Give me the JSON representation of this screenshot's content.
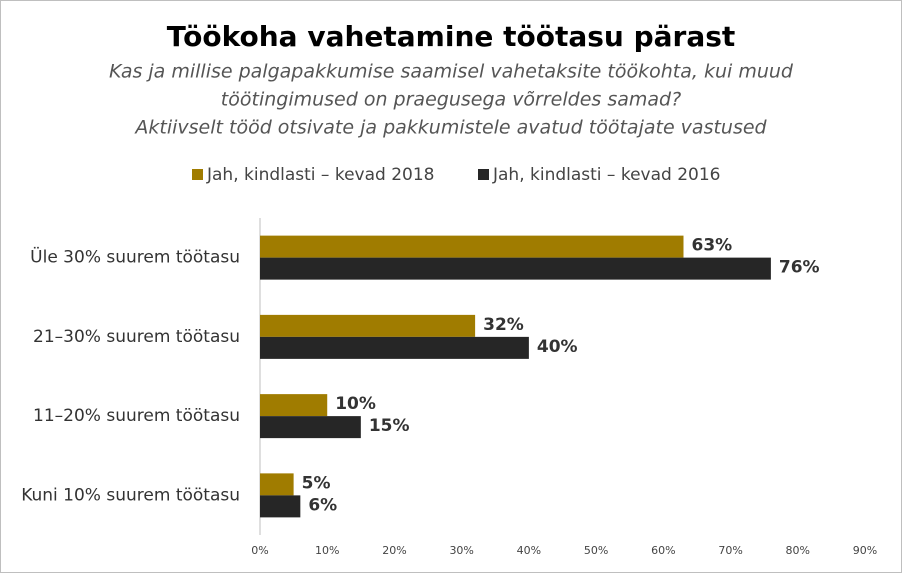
{
  "chart_data": {
    "type": "hbar",
    "title": "Töökoha vahetamine töötasu pärast",
    "subtitle": [
      "Kas ja millise palgapakkumise saamisel vahetaksite töökohta, kui muud",
      "töötingimused on praegusega võrreldes samad?",
      "Aktiivselt tööd otsivate ja pakkumistele avatud töötajate vastused"
    ],
    "categories": [
      "Üle 30% suurem töötasu",
      "21–30% suurem töötasu",
      "11–20% suurem töötasu",
      "Kuni 10% suurem töötasu"
    ],
    "series": [
      {
        "name": "Jah, kindlasti – kevad 2018",
        "color": "#a07c00",
        "values": [
          63,
          32,
          10,
          5
        ],
        "value_labels": [
          "63%",
          "32%",
          "10%",
          "5%"
        ]
      },
      {
        "name": "Jah, kindlasti – kevad 2016",
        "color": "#262626",
        "values": [
          76,
          40,
          15,
          6
        ],
        "value_labels": [
          "76%",
          "40%",
          "15%",
          "6%"
        ]
      }
    ],
    "xlim": [
      0,
      90
    ],
    "xticks": [
      {
        "value": 0,
        "label": "0%"
      },
      {
        "value": 10,
        "label": "10%"
      },
      {
        "value": 20,
        "label": "20%"
      },
      {
        "value": 30,
        "label": "30%"
      },
      {
        "value": 40,
        "label": "40%"
      },
      {
        "value": 50,
        "label": "50%"
      },
      {
        "value": 60,
        "label": "60%"
      },
      {
        "value": 70,
        "label": "70%"
      },
      {
        "value": 80,
        "label": "80%"
      },
      {
        "value": 90,
        "label": "90%"
      }
    ],
    "legend": "top"
  }
}
